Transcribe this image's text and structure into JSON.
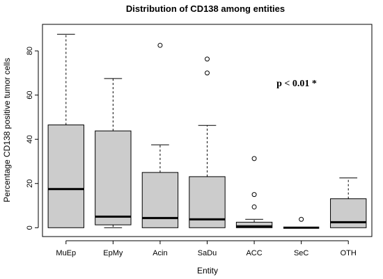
{
  "chart_data": {
    "type": "boxplot",
    "title": "Distribution of CD138 among entities",
    "xlabel": "Entity",
    "ylabel": "Percentage CD138 positive tumor cells",
    "ylim": [
      -4,
      92
    ],
    "yticks": [
      0,
      20,
      40,
      60,
      80
    ],
    "grid": false,
    "categories": [
      "MuEp",
      "EpMy",
      "Acin",
      "SaDu",
      "ACC",
      "SeC",
      "OTH"
    ],
    "boxes": [
      {
        "category": "MuEp",
        "whisker_low": 0,
        "q1": 0,
        "median": 17.5,
        "q3": 46.5,
        "whisker_high": 87.5,
        "outliers": []
      },
      {
        "category": "EpMy",
        "whisker_low": 0,
        "q1": 1.3,
        "median": 5.0,
        "q3": 43.8,
        "whisker_high": 67.5,
        "outliers": []
      },
      {
        "category": "Acin",
        "whisker_low": 0,
        "q1": 0,
        "median": 4.4,
        "q3": 25.0,
        "whisker_high": 37.5,
        "outliers": [
          82.5
        ]
      },
      {
        "category": "SaDu",
        "whisker_low": 0,
        "q1": 0,
        "median": 3.8,
        "q3": 23.1,
        "whisker_high": 46.3,
        "outliers": [
          70.0,
          76.3
        ]
      },
      {
        "category": "ACC",
        "whisker_low": 0,
        "q1": 0,
        "median": 0.6,
        "q3": 2.5,
        "whisker_high": 3.8,
        "outliers": [
          9.4,
          15.0,
          31.3
        ]
      },
      {
        "category": "SeC",
        "whisker_low": 0,
        "q1": 0,
        "median": 0,
        "q3": 0,
        "whisker_high": 0,
        "outliers": [
          3.8
        ]
      },
      {
        "category": "OTH",
        "whisker_low": 0,
        "q1": 0,
        "median": 2.5,
        "q3": 13.1,
        "whisker_high": 22.5,
        "outliers": []
      }
    ],
    "annotation": "p < 0.01 *",
    "colors": {
      "box_fill": "#cccccc",
      "stroke": "#000000"
    }
  }
}
